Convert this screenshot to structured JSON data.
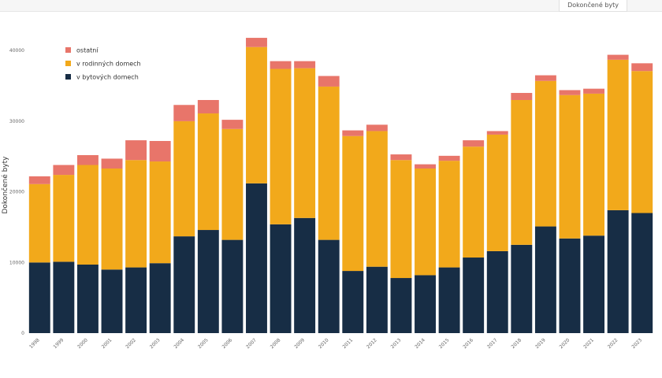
{
  "tab": {
    "label": "Dokončené byty"
  },
  "chart_data": {
    "type": "bar",
    "stacked": true,
    "ylabel": "Dokončené byty",
    "xlabel": "",
    "ylim": [
      0,
      42000
    ],
    "yticks": [
      0,
      10000,
      20000,
      30000,
      40000
    ],
    "grid": false,
    "legend_position": "top-left",
    "categories": [
      "1998",
      "1999",
      "2000",
      "2001",
      "2002",
      "2003",
      "2004",
      "2005",
      "2006",
      "2007",
      "2008",
      "2009",
      "2010",
      "2011",
      "2012",
      "2013",
      "2014",
      "2015",
      "2016",
      "2017",
      "2018",
      "2019",
      "2020",
      "2021",
      "2022",
      "2023"
    ],
    "series": [
      {
        "name": "v bytových domech",
        "color": "#172d45",
        "values": [
          10000,
          10100,
          9700,
          9000,
          9300,
          9900,
          13700,
          14600,
          13200,
          21200,
          15400,
          16300,
          13200,
          8800,
          9400,
          7800,
          8200,
          9300,
          10700,
          11600,
          12500,
          15100,
          13400,
          13800,
          17400,
          17000
        ]
      },
      {
        "name": "v rodinných domech",
        "color": "#f2a91b",
        "values": [
          11100,
          12300,
          14100,
          14300,
          15200,
          14400,
          16300,
          16500,
          15700,
          19300,
          22000,
          21200,
          21700,
          19100,
          19200,
          16700,
          15100,
          15100,
          15700,
          16500,
          20500,
          20600,
          20300,
          20100,
          21300,
          20100
        ]
      },
      {
        "name": "ostatní",
        "color": "#e8756a",
        "values": [
          1100,
          1400,
          1400,
          1400,
          2800,
          2900,
          2300,
          1900,
          1300,
          1300,
          1100,
          1000,
          1500,
          800,
          900,
          800,
          600,
          700,
          900,
          500,
          1000,
          800,
          700,
          700,
          700,
          1100
        ]
      }
    ],
    "legend_order": [
      "ostatní",
      "v rodinných domech",
      "v bytových domech"
    ]
  }
}
